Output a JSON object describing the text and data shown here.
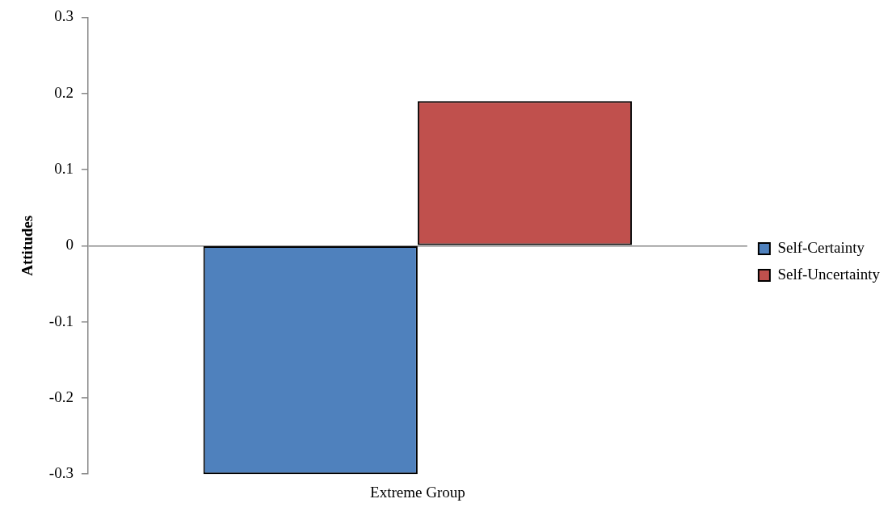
{
  "chart_data": {
    "type": "bar",
    "ylabel": "Attitudes",
    "categories": [
      "Extreme Group"
    ],
    "series": [
      {
        "name": "Self-Certainty",
        "color": "#4f81bd",
        "values": [
          -0.3
        ]
      },
      {
        "name": "Self-Uncertainty",
        "color": "#c0504d",
        "values": [
          0.19
        ]
      }
    ],
    "ylim": [
      -0.3,
      0.3
    ],
    "yticks": [
      -0.3,
      -0.2,
      -0.1,
      0,
      0.1,
      0.2,
      0.3
    ],
    "legend": "right"
  }
}
